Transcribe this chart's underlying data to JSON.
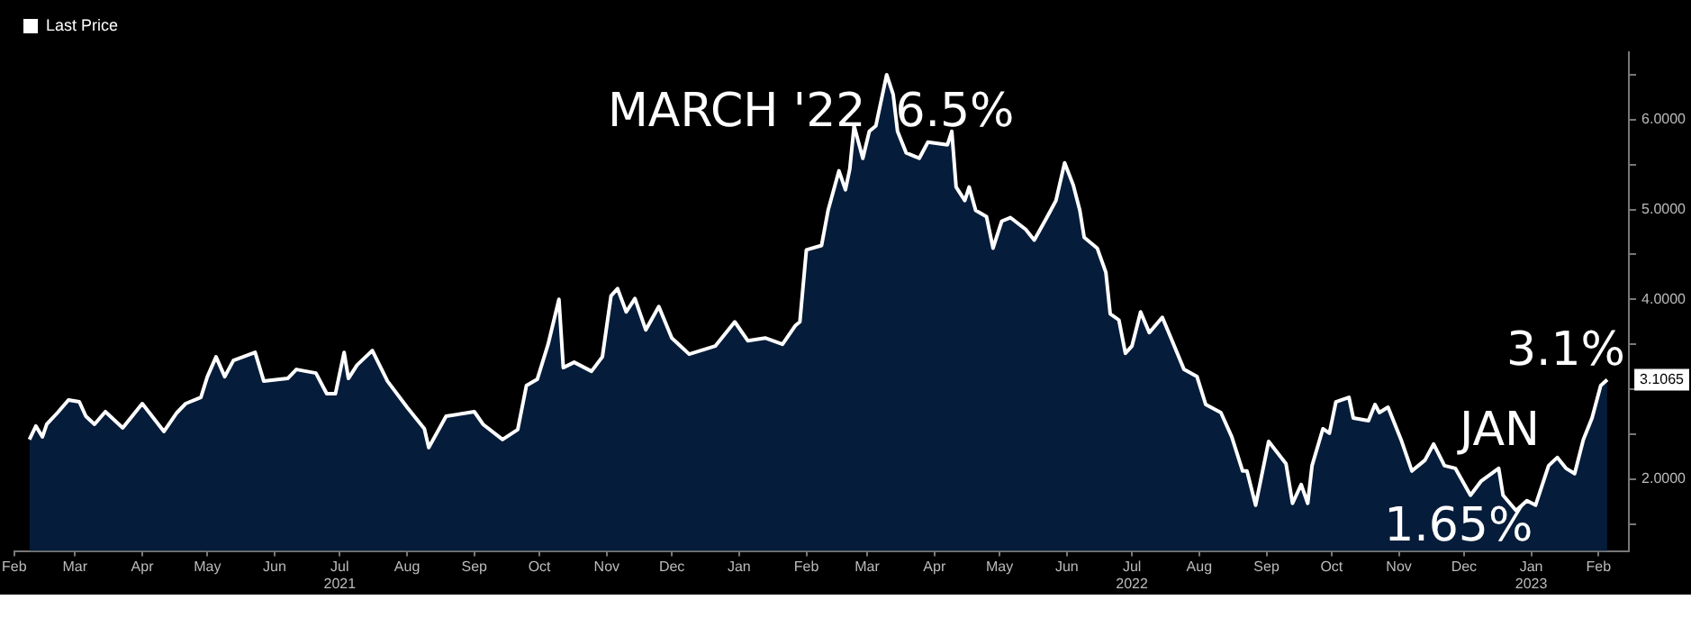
{
  "chart_data": {
    "type": "area",
    "legend": "top left",
    "marker": "none",
    "line_style": "solid",
    "grid": false,
    "xlim": [
      "2021-02-01",
      "2023-02-15"
    ],
    "xticks": [
      {
        "value": "2021-02-01",
        "label": "Feb"
      },
      {
        "value": "2021-03-01",
        "label": "Mar"
      },
      {
        "value": "2021-04-01",
        "label": "Apr"
      },
      {
        "value": "2021-05-01",
        "label": "May"
      },
      {
        "value": "2021-06-01",
        "label": "Jun"
      },
      {
        "value": "2021-07-01",
        "label": "Jul\n2021"
      },
      {
        "value": "2021-08-01",
        "label": "Aug"
      },
      {
        "value": "2021-09-01",
        "label": "Sep"
      },
      {
        "value": "2021-10-01",
        "label": "Oct"
      },
      {
        "value": "2021-11-01",
        "label": "Nov"
      },
      {
        "value": "2021-12-01",
        "label": "Dec"
      },
      {
        "value": "2022-01-01",
        "label": "Jan"
      },
      {
        "value": "2022-02-01",
        "label": "Feb"
      },
      {
        "value": "2022-03-01",
        "label": "Mar"
      },
      {
        "value": "2022-04-01",
        "label": "Apr"
      },
      {
        "value": "2022-05-01",
        "label": "May"
      },
      {
        "value": "2022-06-01",
        "label": "Jun"
      },
      {
        "value": "2022-07-01",
        "label": "Jul\n2022"
      },
      {
        "value": "2022-08-01",
        "label": "Aug"
      },
      {
        "value": "2022-09-01",
        "label": "Sep"
      },
      {
        "value": "2022-10-01",
        "label": "Oct"
      },
      {
        "value": "2022-11-01",
        "label": "Nov"
      },
      {
        "value": "2022-12-01",
        "label": "Dec"
      },
      {
        "value": "2023-01-01",
        "label": "Jan\n2023"
      },
      {
        "value": "2023-02-01",
        "label": "Feb"
      }
    ],
    "ylim": [
      1.2,
      6.75
    ],
    "yticks": [
      {
        "value": 1.5,
        "label": null
      },
      {
        "value": 2,
        "label": "2.0000"
      },
      {
        "value": 2.5,
        "label": null
      },
      {
        "value": 3,
        "label": null
      },
      {
        "value": 3.5,
        "label": null
      },
      {
        "value": 4,
        "label": "4.0000"
      },
      {
        "value": 4.5,
        "label": null
      },
      {
        "value": 5,
        "label": "5.0000"
      },
      {
        "value": 5.5,
        "label": null
      },
      {
        "value": 6,
        "label": "6.0000"
      },
      {
        "value": 6.5,
        "label": null
      }
    ],
    "annotations": [
      {
        "text": "MARCH '22  6.5%",
        "x": "2022-03-10",
        "y": 6.5
      },
      {
        "text": "JAN",
        "x": "2023-01-03",
        "y": 1.71
      },
      {
        "text": "1.65%",
        "x": "2022-12-25",
        "y": 1.65
      },
      {
        "text": "3.1%",
        "x": "2023-02-05",
        "y": 3.1065
      },
      {
        "text": "3.1065",
        "x": "2023-02-05",
        "y": 3.1065
      }
    ],
    "series": [
      {
        "name": "Last Price",
        "color": "#ffffff",
        "x": [
          "2021-02-08",
          "2021-02-11",
          "2021-02-14",
          "2021-02-16",
          "2021-02-21",
          "2021-02-26",
          "2021-03-03",
          "2021-03-06",
          "2021-03-10",
          "2021-03-15",
          "2021-03-23",
          "2021-04-01",
          "2021-04-11",
          "2021-04-17",
          "2021-04-21",
          "2021-04-28",
          "2021-05-01",
          "2021-05-05",
          "2021-05-09",
          "2021-05-13",
          "2021-05-23",
          "2021-05-27",
          "2021-06-07",
          "2021-06-11",
          "2021-06-20",
          "2021-06-25",
          "2021-06-29",
          "2021-07-03",
          "2021-07-05",
          "2021-07-09",
          "2021-07-16",
          "2021-07-23",
          "2021-08-01",
          "2021-08-09",
          "2021-08-11",
          "2021-08-19",
          "2021-09-01",
          "2021-09-05",
          "2021-09-14",
          "2021-09-21",
          "2021-09-25",
          "2021-09-30",
          "2021-10-05",
          "2021-10-10",
          "2021-10-12",
          "2021-10-17",
          "2021-10-25",
          "2021-10-30",
          "2021-11-03",
          "2021-11-06",
          "2021-11-10",
          "2021-11-14",
          "2021-11-19",
          "2021-11-25",
          "2021-12-01",
          "2021-12-09",
          "2021-12-21",
          "2021-12-30",
          "2022-01-05",
          "2022-01-13",
          "2022-01-21",
          "2022-01-27",
          "2022-01-29",
          "2022-02-01",
          "2022-02-08",
          "2022-02-11",
          "2022-02-16",
          "2022-02-19",
          "2022-02-21",
          "2022-02-23",
          "2022-02-27",
          "2022-03-02",
          "2022-03-05",
          "2022-03-10",
          "2022-03-13",
          "2022-03-15",
          "2022-03-19",
          "2022-03-25",
          "2022-03-29",
          "2022-04-07",
          "2022-04-09",
          "2022-04-11",
          "2022-04-15",
          "2022-04-17",
          "2022-04-20",
          "2022-04-25",
          "2022-04-28",
          "2022-05-02",
          "2022-05-06",
          "2022-05-13",
          "2022-05-17",
          "2022-05-23",
          "2022-05-27",
          "2022-05-31",
          "2022-06-04",
          "2022-06-07",
          "2022-06-09",
          "2022-06-15",
          "2022-06-19",
          "2022-06-21",
          "2022-06-25",
          "2022-06-28",
          "2022-07-01",
          "2022-07-05",
          "2022-07-09",
          "2022-07-15",
          "2022-07-19",
          "2022-07-25",
          "2022-07-31",
          "2022-08-04",
          "2022-08-11",
          "2022-08-16",
          "2022-08-21",
          "2022-08-23",
          "2022-08-27",
          "2022-09-02",
          "2022-09-10",
          "2022-09-13",
          "2022-09-17",
          "2022-09-20",
          "2022-09-22",
          "2022-09-27",
          "2022-09-30",
          "2022-10-03",
          "2022-10-09",
          "2022-10-11",
          "2022-10-18",
          "2022-10-21",
          "2022-10-23",
          "2022-10-27",
          "2022-11-02",
          "2022-11-07",
          "2022-11-13",
          "2022-11-17",
          "2022-11-22",
          "2022-11-27",
          "2022-12-04",
          "2022-12-09",
          "2022-12-17",
          "2022-12-19",
          "2022-12-25",
          "2022-12-30",
          "2023-01-03",
          "2023-01-09",
          "2023-01-13",
          "2023-01-17",
          "2023-01-21",
          "2023-01-25",
          "2023-01-29",
          "2023-02-02",
          "2023-02-05"
        ],
        "values": [
          2.44,
          2.59,
          2.47,
          2.61,
          2.74,
          2.88,
          2.86,
          2.7,
          2.61,
          2.75,
          2.57,
          2.84,
          2.53,
          2.74,
          2.84,
          2.91,
          3.14,
          3.36,
          3.14,
          3.32,
          3.41,
          3.09,
          3.12,
          3.22,
          3.18,
          2.95,
          2.95,
          3.41,
          3.12,
          3.27,
          3.43,
          3.09,
          2.8,
          2.56,
          2.35,
          2.7,
          2.75,
          2.61,
          2.44,
          2.55,
          3.04,
          3.11,
          3.5,
          4.0,
          3.24,
          3.3,
          3.2,
          3.36,
          4.04,
          4.12,
          3.86,
          4.01,
          3.66,
          3.92,
          3.57,
          3.39,
          3.48,
          3.75,
          3.54,
          3.57,
          3.5,
          3.71,
          3.75,
          4.55,
          4.6,
          4.99,
          5.43,
          5.22,
          5.45,
          5.93,
          5.57,
          5.87,
          5.93,
          6.5,
          6.28,
          5.87,
          5.63,
          5.57,
          5.75,
          5.72,
          5.87,
          5.25,
          5.1,
          5.25,
          4.99,
          4.92,
          4.57,
          4.87,
          4.91,
          4.78,
          4.66,
          4.92,
          5.1,
          5.52,
          5.27,
          4.99,
          4.69,
          4.57,
          4.3,
          3.84,
          3.77,
          3.4,
          3.48,
          3.86,
          3.63,
          3.8,
          3.57,
          3.22,
          3.14,
          2.83,
          2.74,
          2.47,
          2.09,
          2.09,
          1.71,
          2.42,
          2.17,
          1.73,
          1.94,
          1.73,
          2.15,
          2.56,
          2.51,
          2.86,
          2.91,
          2.68,
          2.65,
          2.83,
          2.74,
          2.8,
          2.44,
          2.09,
          2.21,
          2.39,
          2.15,
          2.12,
          1.82,
          1.98,
          2.12,
          1.82,
          1.65,
          1.76,
          1.71,
          2.15,
          2.24,
          2.12,
          2.06,
          2.44,
          2.68,
          3.04,
          3.1065
        ]
      }
    ]
  }
}
